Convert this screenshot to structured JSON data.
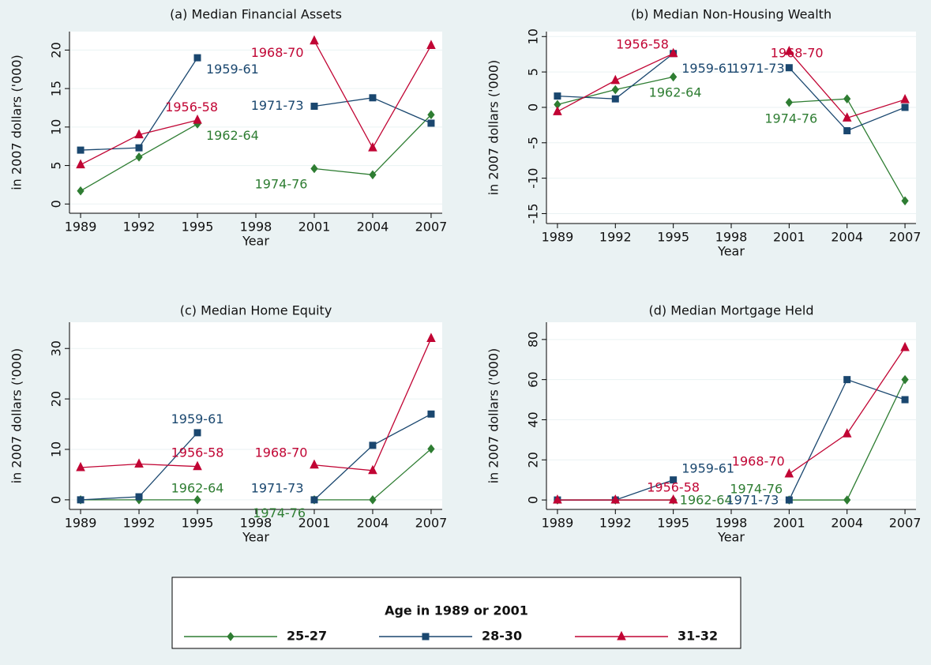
{
  "chart_data": [
    {
      "type": "line",
      "title": "(a) Median Financial Assets",
      "xlabel": "Year",
      "ylabel": "in 2007 dollars ('000)",
      "x": [
        1989,
        1992,
        1995,
        1998,
        2001,
        2004,
        2007
      ],
      "xlim": [
        1988.43,
        2007.57
      ],
      "xticks": [
        1989,
        1992,
        1995,
        1998,
        2001,
        2004,
        2007
      ],
      "ylim": [
        -1.2,
        22.4
      ],
      "yticks": [
        0,
        5,
        10,
        15,
        20
      ],
      "grid": true,
      "series": [
        {
          "values": [
            1.7,
            6.1,
            10.4,
            null,
            4.6,
            3.8,
            11.6
          ]
        },
        {
          "values": [
            7.0,
            7.3,
            19.0,
            null,
            12.7,
            13.8,
            10.5
          ]
        },
        {
          "values": [
            5.1,
            9.0,
            10.9,
            null,
            21.2,
            7.3,
            20.6
          ]
        }
      ],
      "annotations": [
        {
          "text": "1959-61",
          "x": 1996.8,
          "y": 17.4,
          "color": "#1a476f"
        },
        {
          "text": "1956-58",
          "x": 1994.7,
          "y": 12.5,
          "color": "#c10534"
        },
        {
          "text": "1962-64",
          "x": 1996.8,
          "y": 8.8,
          "color": "#2e7d32"
        },
        {
          "text": "1968-70",
          "x": 1999.1,
          "y": 19.6,
          "color": "#c10534"
        },
        {
          "text": "1971-73",
          "x": 1999.1,
          "y": 12.7,
          "color": "#1a476f"
        },
        {
          "text": "1974-76",
          "x": 1999.3,
          "y": 2.5,
          "color": "#2e7d32"
        }
      ]
    },
    {
      "type": "line",
      "title": "(b) Median Non-Housing Wealth",
      "xlabel": "Year",
      "ylabel": "in 2007 dollars ('000)",
      "x": [
        1989,
        1992,
        1995,
        1998,
        2001,
        2004,
        2007
      ],
      "xlim": [
        1988.43,
        2007.57
      ],
      "xticks": [
        1989,
        1992,
        1995,
        1998,
        2001,
        2004,
        2007
      ],
      "ylim": [
        -16.4,
        10.7
      ],
      "yticks": [
        -15,
        -10,
        -5,
        0,
        5,
        10
      ],
      "grid": true,
      "series": [
        {
          "values": [
            0.4,
            2.5,
            4.3,
            null,
            0.7,
            1.2,
            -13.2
          ]
        },
        {
          "values": [
            1.6,
            1.2,
            7.6,
            null,
            5.6,
            -3.3,
            0.0
          ]
        },
        {
          "values": [
            -0.6,
            3.8,
            7.6,
            null,
            7.9,
            -1.5,
            1.1
          ]
        }
      ],
      "annotations": [
        {
          "text": "1956-58",
          "x": 1993.4,
          "y": 8.8,
          "color": "#c10534"
        },
        {
          "text": "1959-61",
          "x": 1996.8,
          "y": 5.4,
          "color": "#1a476f"
        },
        {
          "text": "1971-73",
          "x": 1999.4,
          "y": 5.4,
          "color": "#1a476f"
        },
        {
          "text": "1962-64",
          "x": 1995.1,
          "y": 2.0,
          "color": "#2e7d32"
        },
        {
          "text": "1968-70",
          "x": 2001.4,
          "y": 7.6,
          "color": "#c10534"
        },
        {
          "text": "1974-76",
          "x": 2001.1,
          "y": -1.7,
          "color": "#2e7d32"
        }
      ]
    },
    {
      "type": "line",
      "title": "(c) Median Home Equity",
      "xlabel": "Year",
      "ylabel": "in 2007 dollars ('000)",
      "x": [
        1989,
        1992,
        1995,
        1998,
        2001,
        2004,
        2007
      ],
      "xlim": [
        1988.43,
        2007.57
      ],
      "xticks": [
        1989,
        1992,
        1995,
        1998,
        2001,
        2004,
        2007
      ],
      "ylim": [
        -1.9,
        35.2
      ],
      "yticks": [
        0,
        10,
        20,
        30
      ],
      "grid": true,
      "series": [
        {
          "values": [
            0,
            0,
            0,
            null,
            0,
            0,
            10.1
          ]
        },
        {
          "values": [
            0,
            0.6,
            13.3,
            null,
            0,
            10.8,
            17.0
          ]
        },
        {
          "values": [
            6.4,
            7.1,
            6.6,
            null,
            6.9,
            5.8,
            32.0
          ]
        }
      ],
      "annotations": [
        {
          "text": "1959-61",
          "x": 1995.0,
          "y": 15.9,
          "color": "#1a476f"
        },
        {
          "text": "1956-58",
          "x": 1995.0,
          "y": 9.2,
          "color": "#c10534"
        },
        {
          "text": "1962-64",
          "x": 1995.0,
          "y": 2.2,
          "color": "#2e7d32"
        },
        {
          "text": "1968-70",
          "x": 1999.3,
          "y": 9.2,
          "color": "#c10534"
        },
        {
          "text": "1971-73",
          "x": 1999.1,
          "y": 2.2,
          "color": "#1a476f"
        },
        {
          "text": "1974-76",
          "x": 1999.2,
          "y": -2.8,
          "color": "#2e7d32"
        }
      ]
    },
    {
      "type": "line",
      "title": "(d) Median Mortgage Held",
      "xlabel": "Year",
      "ylabel": "in 2007 dollars ('000)",
      "x": [
        1989,
        1992,
        1995,
        1998,
        2001,
        2004,
        2007
      ],
      "xlim": [
        1988.43,
        2007.57
      ],
      "xticks": [
        1989,
        1992,
        1995,
        1998,
        2001,
        2004,
        2007
      ],
      "ylim": [
        -4.7,
        88.6
      ],
      "yticks": [
        0,
        20,
        40,
        60,
        80
      ],
      "grid": true,
      "series": [
        {
          "values": [
            0,
            0,
            0,
            null,
            0,
            0,
            60
          ]
        },
        {
          "values": [
            0,
            0,
            10,
            null,
            0,
            60,
            50
          ]
        },
        {
          "values": [
            0,
            0,
            0,
            null,
            13,
            33,
            76
          ]
        }
      ],
      "annotations": [
        {
          "text": "1959-61",
          "x": 1996.8,
          "y": 15.4,
          "color": "#1a476f"
        },
        {
          "text": "1956-58",
          "x": 1995.0,
          "y": 5.9,
          "color": "#c10534"
        },
        {
          "text": "1968-70",
          "x": 1999.4,
          "y": 18.9,
          "color": "#c10534"
        },
        {
          "text": "1974-76",
          "x": 1999.3,
          "y": 5.1,
          "color": "#2e7d32"
        },
        {
          "text": "1962-64",
          "x": 1996.7,
          "y": -0.4,
          "color": "#2e7d32"
        },
        {
          "text": "1971-73",
          "x": 1999.1,
          "y": -0.4,
          "color": "#1a476f"
        }
      ]
    }
  ],
  "legend": {
    "title": "Age in 1989 or 2001",
    "items": [
      {
        "name": "25-27",
        "color": "#2e7d32",
        "marker": "diamond"
      },
      {
        "name": "28-30",
        "color": "#1a476f",
        "marker": "square"
      },
      {
        "name": "31-32",
        "color": "#c10534",
        "marker": "triangle"
      }
    ]
  }
}
